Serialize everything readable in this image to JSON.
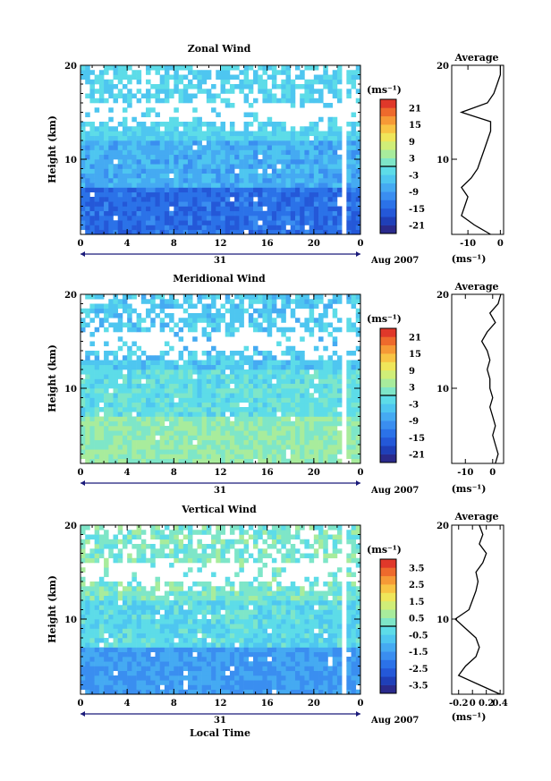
{
  "figure": {
    "colorbar_unit": "(ms⁻¹)",
    "date_label": "Aug 2007",
    "day_label": "31",
    "xlabel": "Local Time",
    "ylabel": "Height (km)",
    "avg_title": "Average",
    "avg_unit": "(ms⁻¹)"
  },
  "chart_data": [
    {
      "type": "heatmap",
      "title": "Zonal Wind",
      "ylabel": "Height (km)",
      "xlabel": "",
      "x_ticks": [
        "0",
        "4",
        "8",
        "12",
        "16",
        "20",
        "0"
      ],
      "y_ticks": [
        "20",
        "10"
      ],
      "xlim": [
        0,
        24
      ],
      "ylim": [
        2,
        20
      ],
      "colorbar": {
        "unit": "(ms⁻¹)",
        "ticks": [
          "21",
          "15",
          "9",
          "3",
          "-3",
          "-9",
          "-15",
          "-21"
        ],
        "range": [
          -24,
          24
        ]
      },
      "field_summary": {
        "low_levels": -14,
        "mid_levels": -7,
        "upper_levels": -3,
        "gap_band_km": [
          14,
          16
        ]
      },
      "average_profile": {
        "title": "Average",
        "unit": "(ms⁻¹)",
        "x_ticks": [
          "-10",
          "0"
        ],
        "xlim": [
          -15,
          1
        ],
        "heights_km": [
          2,
          3,
          4,
          5,
          6,
          7,
          8,
          9,
          10,
          11,
          12,
          13,
          14,
          15,
          16,
          17,
          18,
          19,
          20
        ],
        "values": [
          -3,
          -8,
          -12,
          -11,
          -10,
          -12,
          -9,
          -7,
          -6,
          -5,
          -4,
          -3,
          -3,
          -12,
          -4,
          -2,
          -1,
          0,
          0
        ]
      }
    },
    {
      "type": "heatmap",
      "title": "Meridional Wind",
      "ylabel": "Height (km)",
      "xlabel": "",
      "x_ticks": [
        "0",
        "4",
        "8",
        "12",
        "16",
        "20",
        "0"
      ],
      "y_ticks": [
        "20",
        "10"
      ],
      "xlim": [
        0,
        24
      ],
      "ylim": [
        2,
        20
      ],
      "colorbar": {
        "unit": "(ms⁻¹)",
        "ticks": [
          "21",
          "15",
          "9",
          "3",
          "-3",
          "-9",
          "-15",
          "-21"
        ],
        "range": [
          -24,
          24
        ]
      },
      "field_summary": {
        "low_levels": 3,
        "mid_levels": -1,
        "upper_levels": -4,
        "gap_band_km": [
          14,
          16
        ]
      },
      "average_profile": {
        "title": "Average",
        "unit": "(ms⁻¹)",
        "x_ticks": [
          "-10",
          "0"
        ],
        "xlim": [
          -15,
          4
        ],
        "heights_km": [
          2,
          3,
          4,
          5,
          6,
          7,
          8,
          9,
          10,
          11,
          12,
          13,
          14,
          15,
          16,
          17,
          18,
          19,
          20
        ],
        "values": [
          1,
          2,
          1,
          0,
          1,
          0,
          -1,
          0,
          -1,
          -1,
          -2,
          -1,
          -2,
          -4,
          -2,
          1,
          -1,
          2,
          3
        ]
      }
    },
    {
      "type": "heatmap",
      "title": "Vertical Wind",
      "ylabel": "Height (km)",
      "xlabel": "Local Time",
      "x_ticks": [
        "0",
        "4",
        "8",
        "12",
        "16",
        "20",
        "0"
      ],
      "y_ticks": [
        "20",
        "10"
      ],
      "xlim": [
        0,
        24
      ],
      "ylim": [
        2,
        20
      ],
      "colorbar": {
        "unit": "(ms⁻¹)",
        "ticks": [
          "3.5",
          "2.5",
          "1.5",
          "0.5",
          "-0.5",
          "-1.5",
          "-2.5",
          "-3.5"
        ],
        "range": [
          -4,
          4
        ]
      },
      "field_summary": {
        "low_levels": -1.5,
        "mid_levels": -0.3,
        "upper_levels": 0.2,
        "gap_band_km": [
          14,
          16
        ]
      },
      "average_profile": {
        "title": "Average",
        "unit": "(ms⁻¹)",
        "x_ticks": [
          "-0.2",
          "0",
          "0.2",
          "0.4"
        ],
        "xlim": [
          -0.3,
          0.45
        ],
        "heights_km": [
          2,
          3,
          4,
          5,
          6,
          7,
          8,
          9,
          10,
          11,
          12,
          13,
          14,
          15,
          16,
          17,
          18,
          19,
          20
        ],
        "values": [
          0.4,
          0.1,
          -0.2,
          -0.1,
          0.05,
          0.1,
          0.05,
          -0.1,
          -0.25,
          -0.05,
          0.0,
          0.05,
          0.08,
          0.05,
          0.15,
          0.2,
          0.1,
          0.15,
          0.1
        ]
      }
    }
  ]
}
